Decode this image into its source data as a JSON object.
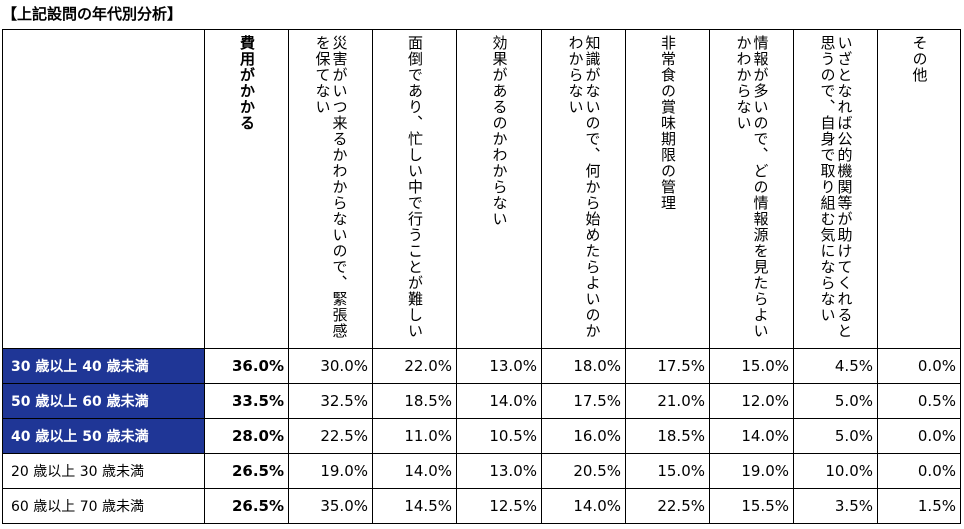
{
  "title": "【上記設問の年代別分析】",
  "columns": [
    "費用がかかる",
    "災害がいつ来るかわからないので、緊張感を保てない",
    "面倒であり、忙しい中で行うことが難しい",
    "効果があるのかわからない",
    "知識がないので、何から始めたらよいのかわからない",
    "非常食の賞味期限の管理",
    "情報が多いので、どの情報源を見たらよいかわからない",
    "いざとなれば公的機関等が助けてくれると思うので、自身で取り組む気にならない",
    "その他"
  ],
  "rows": [
    {
      "label": "30 歳以上 40 歳未満",
      "highlight": true,
      "values": [
        "36.0%",
        "30.0%",
        "22.0%",
        "13.0%",
        "18.0%",
        "17.5%",
        "15.0%",
        "4.5%",
        "0.0%"
      ]
    },
    {
      "label": "50 歳以上 60 歳未満",
      "highlight": true,
      "values": [
        "33.5%",
        "32.5%",
        "18.5%",
        "14.0%",
        "17.5%",
        "21.0%",
        "12.0%",
        "5.0%",
        "0.5%"
      ]
    },
    {
      "label": "40 歳以上 50 歳未満",
      "highlight": true,
      "values": [
        "28.0%",
        "22.5%",
        "11.0%",
        "10.5%",
        "16.0%",
        "18.5%",
        "14.0%",
        "5.0%",
        "0.0%"
      ]
    },
    {
      "label": "20 歳以上 30 歳未満",
      "highlight": false,
      "values": [
        "26.5%",
        "19.0%",
        "14.0%",
        "13.0%",
        "20.5%",
        "15.0%",
        "19.0%",
        "10.0%",
        "0.0%"
      ]
    },
    {
      "label": "60 歳以上 70 歳未満",
      "highlight": false,
      "values": [
        "26.5%",
        "35.0%",
        "14.5%",
        "12.5%",
        "14.0%",
        "22.5%",
        "15.5%",
        "3.5%",
        "1.5%"
      ]
    }
  ],
  "colors": {
    "highlight_bg": "#1f3696",
    "highlight_text": "#ffffff",
    "border": "#000000"
  }
}
